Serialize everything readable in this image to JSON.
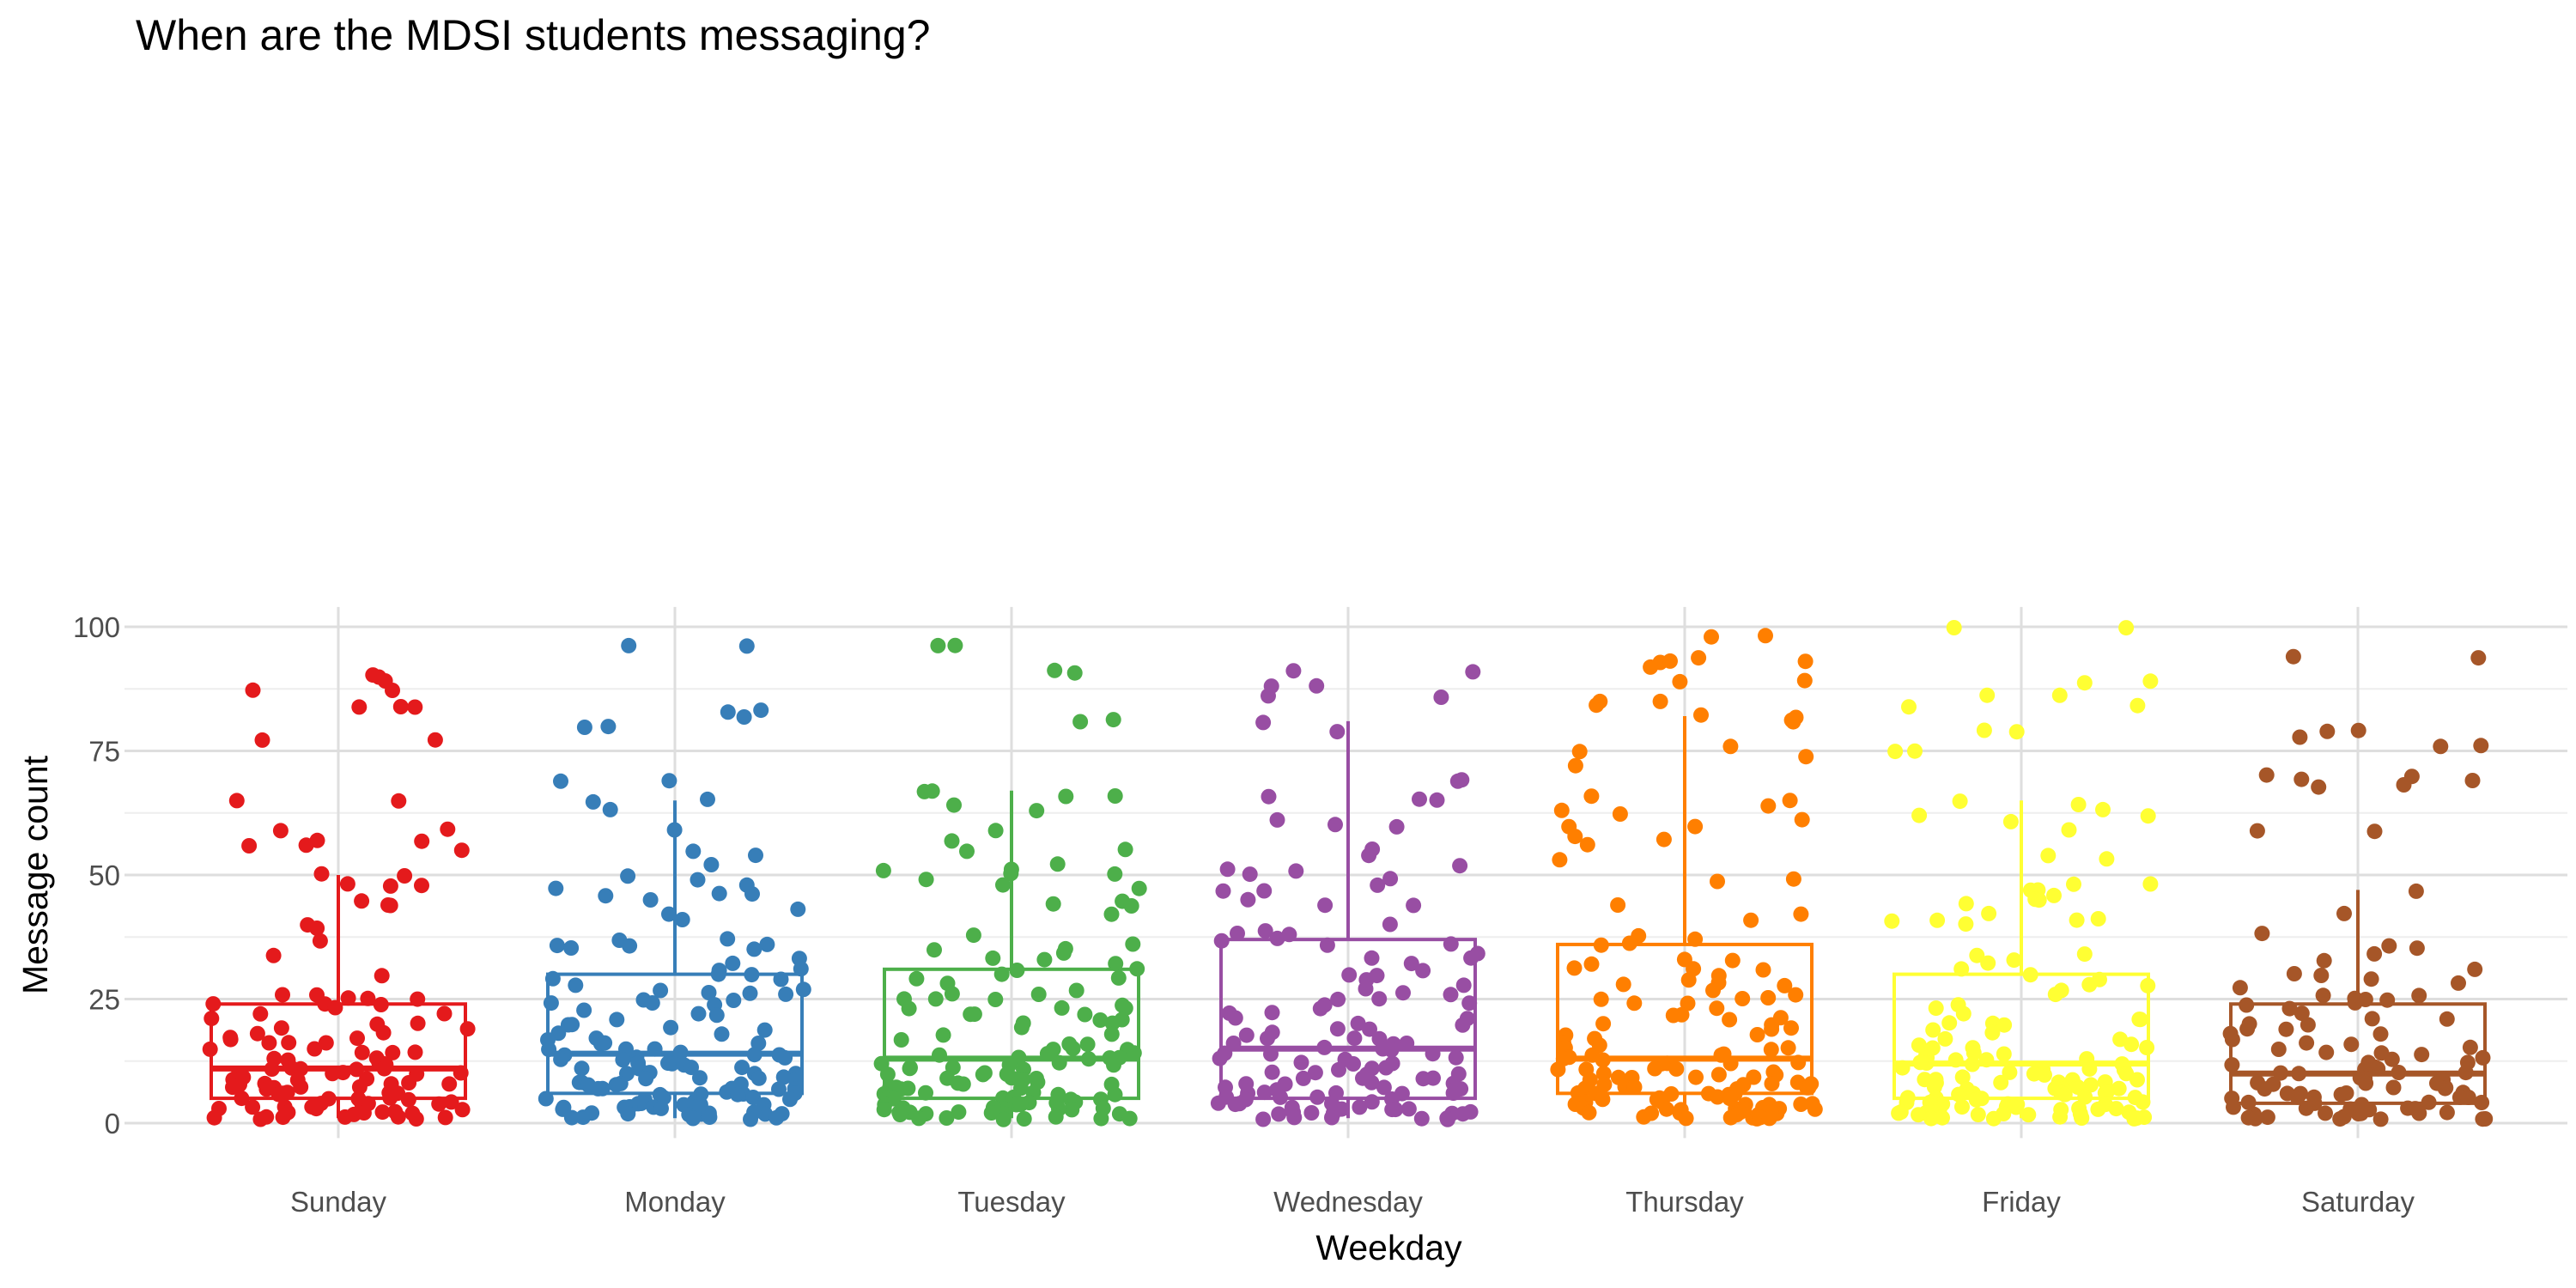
{
  "chart_data": {
    "type": "boxplot with jittered points",
    "title": "When are the MDSI students messaging?",
    "xlabel": "Weekday",
    "ylabel": "Message count",
    "categories": [
      "Sunday",
      "Monday",
      "Tuesday",
      "Wednesday",
      "Thursday",
      "Friday",
      "Saturday"
    ],
    "ylim": [
      -3,
      104
    ],
    "yticks": [
      0,
      25,
      50,
      75,
      100
    ],
    "grid": true,
    "legend": "none",
    "colors": [
      "#E41A1C",
      "#377EB8",
      "#4DAF4A",
      "#984EA3",
      "#FF7F00",
      "#FFFF33",
      "#A65628"
    ],
    "series": [
      {
        "category": "Sunday",
        "box": {
          "lower_whisker": 1,
          "q1": 5,
          "median": 11,
          "q3": 24,
          "upper_whisker": 50
        },
        "points": [
          90,
          90,
          89,
          87,
          87,
          84,
          84,
          84,
          77,
          77,
          65,
          65,
          59,
          59,
          57,
          57,
          56,
          56,
          55,
          50,
          50,
          48,
          48,
          48,
          45,
          44,
          44,
          40,
          39,
          37,
          34,
          30,
          26,
          26,
          25,
          25,
          25,
          24,
          24,
          24,
          23,
          22,
          22,
          21,
          20,
          20,
          19,
          19,
          18,
          18,
          17,
          17,
          17,
          16,
          16,
          16,
          15,
          15,
          14,
          14,
          14,
          13,
          13,
          13,
          12,
          12,
          12,
          11,
          11,
          11,
          11,
          11,
          10,
          10,
          10,
          10,
          10,
          9,
          9,
          9,
          9,
          8,
          8,
          8,
          8,
          8,
          7,
          7,
          7,
          7,
          7,
          6,
          6,
          6,
          6,
          6,
          5,
          5,
          5,
          5,
          5,
          4,
          4,
          4,
          4,
          4,
          3,
          3,
          3,
          3,
          3,
          3,
          2,
          2,
          2,
          2,
          2,
          2,
          1,
          1,
          1,
          1,
          1,
          1,
          1,
          1
        ]
      },
      {
        "category": "Monday",
        "box": {
          "lower_whisker": 1,
          "q1": 6,
          "median": 14,
          "q3": 30,
          "upper_whisker": 65
        },
        "points": [
          96,
          96,
          83,
          83,
          82,
          80,
          80,
          69,
          69,
          65,
          65,
          63,
          59,
          55,
          54,
          52,
          50,
          49,
          48,
          47,
          46,
          46,
          46,
          45,
          43,
          42,
          41,
          37,
          37,
          36,
          36,
          36,
          35,
          35,
          33,
          32,
          31,
          31,
          30,
          30,
          29,
          29,
          28,
          27,
          27,
          26,
          26,
          26,
          25,
          25,
          24,
          24,
          24,
          23,
          22,
          22,
          21,
          20,
          20,
          19,
          19,
          18,
          18,
          17,
          17,
          16,
          16,
          16,
          15,
          15,
          15,
          14,
          14,
          14,
          14,
          13,
          13,
          13,
          13,
          12,
          12,
          12,
          12,
          11,
          11,
          11,
          11,
          10,
          10,
          10,
          10,
          9,
          9,
          9,
          9,
          9,
          8,
          8,
          8,
          8,
          8,
          8,
          7,
          7,
          7,
          7,
          7,
          7,
          6,
          6,
          6,
          6,
          6,
          6,
          5,
          5,
          5,
          5,
          5,
          5,
          4,
          4,
          4,
          4,
          4,
          4,
          3,
          3,
          3,
          3,
          3,
          3,
          3,
          2,
          2,
          2,
          2,
          2,
          2,
          2,
          2,
          1,
          1,
          1,
          1,
          1,
          1
        ]
      },
      {
        "category": "Tuesday",
        "box": {
          "lower_whisker": 1,
          "q1": 5,
          "median": 13,
          "q3": 31,
          "upper_whisker": 67
        },
        "points": [
          96,
          96,
          91,
          91,
          81,
          81,
          67,
          67,
          66,
          66,
          64,
          63,
          59,
          57,
          55,
          55,
          52,
          51,
          51,
          50,
          50,
          49,
          48,
          47,
          45,
          44,
          44,
          42,
          38,
          36,
          35,
          35,
          34,
          33,
          33,
          32,
          31,
          31,
          30,
          29,
          29,
          28,
          27,
          26,
          26,
          25,
          25,
          25,
          24,
          23,
          23,
          23,
          22,
          22,
          22,
          21,
          21,
          20,
          20,
          19,
          18,
          18,
          17,
          16,
          16,
          15,
          15,
          15,
          14,
          14,
          14,
          13,
          13,
          13,
          13,
          12,
          12,
          12,
          12,
          11,
          11,
          11,
          11,
          10,
          10,
          10,
          10,
          9,
          9,
          9,
          9,
          8,
          8,
          8,
          8,
          7,
          7,
          7,
          7,
          7,
          6,
          6,
          6,
          6,
          6,
          5,
          5,
          5,
          5,
          5,
          5,
          4,
          4,
          4,
          4,
          4,
          4,
          3,
          3,
          3,
          3,
          3,
          3,
          3,
          2,
          2,
          2,
          2,
          2,
          2,
          2,
          2,
          1,
          1,
          1,
          1,
          1,
          1,
          1
        ]
      },
      {
        "category": "Wednesday",
        "box": {
          "lower_whisker": 1,
          "q1": 5,
          "median": 15,
          "q3": 37,
          "upper_whisker": 81
        },
        "points": [
          91,
          91,
          88,
          88,
          86,
          86,
          81,
          79,
          69,
          69,
          66,
          65,
          65,
          61,
          60,
          60,
          55,
          54,
          52,
          51,
          51,
          50,
          49,
          48,
          47,
          47,
          45,
          44,
          44,
          40,
          39,
          38,
          38,
          37,
          37,
          36,
          36,
          34,
          33,
          33,
          32,
          31,
          30,
          30,
          29,
          28,
          27,
          26,
          26,
          25,
          25,
          24,
          24,
          23,
          22,
          22,
          21,
          21,
          20,
          20,
          19,
          19,
          18,
          18,
          17,
          17,
          17,
          16,
          16,
          16,
          15,
          15,
          15,
          14,
          14,
          14,
          13,
          13,
          13,
          12,
          12,
          12,
          11,
          11,
          11,
          10,
          10,
          10,
          10,
          9,
          9,
          9,
          9,
          8,
          8,
          8,
          8,
          7,
          7,
          7,
          7,
          7,
          6,
          6,
          6,
          6,
          6,
          5,
          5,
          5,
          5,
          5,
          4,
          4,
          4,
          4,
          4,
          3,
          3,
          3,
          3,
          3,
          3,
          2,
          2,
          2,
          2,
          2,
          2,
          2,
          1,
          1,
          1,
          1,
          1,
          1
        ]
      },
      {
        "category": "Thursday",
        "box": {
          "lower_whisker": 1,
          "q1": 6,
          "median": 13,
          "q3": 36,
          "upper_whisker": 82
        },
        "points": [
          98,
          98,
          94,
          93,
          93,
          93,
          92,
          89,
          89,
          85,
          85,
          84,
          82,
          82,
          81,
          81,
          76,
          75,
          74,
          72,
          66,
          65,
          64,
          63,
          62,
          61,
          60,
          60,
          58,
          57,
          56,
          53,
          49,
          49,
          44,
          42,
          41,
          38,
          37,
          36,
          36,
          33,
          33,
          32,
          31,
          31,
          31,
          30,
          29,
          28,
          28,
          28,
          27,
          26,
          25,
          25,
          25,
          24,
          24,
          23,
          22,
          22,
          21,
          21,
          20,
          20,
          19,
          19,
          18,
          18,
          17,
          17,
          16,
          16,
          15,
          15,
          15,
          14,
          14,
          14,
          13,
          13,
          13,
          12,
          12,
          12,
          12,
          11,
          11,
          11,
          11,
          10,
          10,
          10,
          10,
          9,
          9,
          9,
          9,
          9,
          8,
          8,
          8,
          8,
          8,
          7,
          7,
          7,
          7,
          7,
          7,
          6,
          6,
          6,
          6,
          6,
          6,
          5,
          5,
          5,
          5,
          5,
          5,
          4,
          4,
          4,
          4,
          4,
          4,
          4,
          3,
          3,
          3,
          3,
          3,
          3,
          3,
          3,
          2,
          2,
          2,
          2,
          2,
          2,
          2,
          2,
          2,
          1,
          1,
          1,
          1,
          1,
          1,
          1,
          1
        ]
      },
      {
        "category": "Friday",
        "box": {
          "lower_whisker": 1,
          "q1": 5,
          "median": 12,
          "q3": 30,
          "upper_whisker": 65
        },
        "points": [
          100,
          100,
          89,
          89,
          86,
          86,
          84,
          84,
          79,
          79,
          75,
          75,
          65,
          64,
          63,
          62,
          62,
          61,
          59,
          54,
          53,
          48,
          48,
          47,
          47,
          46,
          45,
          45,
          44,
          42,
          41,
          41,
          41,
          41,
          40,
          34,
          34,
          33,
          32,
          31,
          30,
          29,
          28,
          28,
          27,
          26,
          24,
          23,
          22,
          21,
          21,
          20,
          20,
          20,
          19,
          18,
          17,
          17,
          16,
          16,
          15,
          15,
          15,
          14,
          14,
          14,
          13,
          13,
          13,
          13,
          12,
          12,
          12,
          12,
          11,
          11,
          11,
          11,
          10,
          10,
          10,
          10,
          9,
          9,
          9,
          9,
          9,
          8,
          8,
          8,
          8,
          8,
          7,
          7,
          7,
          7,
          7,
          7,
          6,
          6,
          6,
          6,
          6,
          6,
          5,
          5,
          5,
          5,
          5,
          5,
          4,
          4,
          4,
          4,
          4,
          4,
          4,
          3,
          3,
          3,
          3,
          3,
          3,
          3,
          3,
          2,
          2,
          2,
          2,
          2,
          2,
          2,
          2,
          2,
          1,
          1,
          1,
          1,
          1,
          1,
          1,
          1,
          1
        ]
      },
      {
        "category": "Saturday",
        "box": {
          "lower_whisker": 1,
          "q1": 4,
          "median": 10,
          "q3": 24,
          "upper_whisker": 47
        },
        "points": [
          94,
          94,
          79,
          79,
          78,
          76,
          76,
          70,
          70,
          69,
          69,
          68,
          68,
          59,
          59,
          47,
          42,
          38,
          36,
          35,
          34,
          33,
          31,
          30,
          30,
          29,
          28,
          27,
          26,
          26,
          25,
          25,
          25,
          24,
          24,
          23,
          22,
          21,
          21,
          20,
          20,
          19,
          19,
          18,
          18,
          17,
          16,
          16,
          15,
          15,
          14,
          14,
          14,
          13,
          13,
          12,
          12,
          12,
          11,
          11,
          11,
          10,
          10,
          10,
          10,
          9,
          9,
          9,
          8,
          8,
          8,
          8,
          7,
          7,
          7,
          7,
          6,
          6,
          6,
          6,
          6,
          5,
          5,
          5,
          5,
          5,
          4,
          4,
          4,
          4,
          4,
          3,
          3,
          3,
          3,
          3,
          3,
          2,
          2,
          2,
          2,
          2,
          2,
          1,
          1,
          1,
          1,
          1,
          1,
          1,
          1
        ]
      }
    ]
  }
}
